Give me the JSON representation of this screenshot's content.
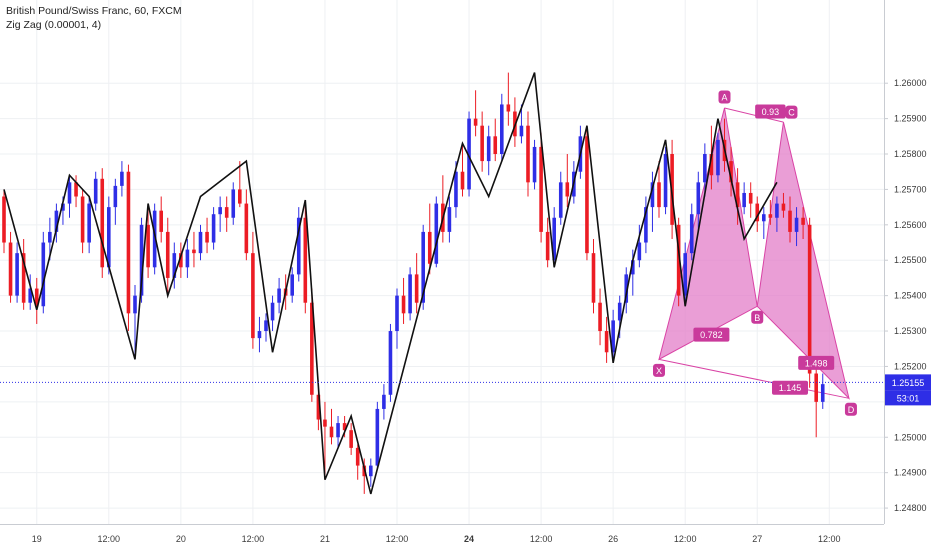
{
  "legend": {
    "title": "British Pound/Swiss Franc, 60, FXCM",
    "indicator": "Zig Zag (0.00001, 4)"
  },
  "chart_data": {
    "type": "candlestick",
    "y_ticks": [
      1.248,
      1.249,
      1.25,
      1.251,
      1.252,
      1.253,
      1.254,
      1.255,
      1.256,
      1.257,
      1.258,
      1.259,
      1.26
    ],
    "y_tick_labels": [
      "1.24800",
      "1.24900",
      "1.25000",
      "1.25100",
      "1.25200",
      "1.25300",
      "1.25400",
      "1.25500",
      "1.25600",
      "1.25700",
      "1.25800",
      "1.25900",
      "1.26000"
    ],
    "ylim": [
      1.24755,
      1.26235
    ],
    "x_ticks": [
      {
        "i": 5,
        "label": "19",
        "bold": false
      },
      {
        "i": 16,
        "label": "12:00",
        "bold": false
      },
      {
        "i": 27,
        "label": "20",
        "bold": false
      },
      {
        "i": 38,
        "label": "12:00",
        "bold": false
      },
      {
        "i": 49,
        "label": "21",
        "bold": false
      },
      {
        "i": 60,
        "label": "12:00",
        "bold": false
      },
      {
        "i": 71,
        "label": "24",
        "bold": true
      },
      {
        "i": 82,
        "label": "12:00",
        "bold": false
      },
      {
        "i": 93,
        "label": "26",
        "bold": false
      },
      {
        "i": 104,
        "label": "12:00",
        "bold": false
      },
      {
        "i": 115,
        "label": "27",
        "bold": false
      },
      {
        "i": 126,
        "label": "12:00",
        "bold": false
      }
    ],
    "current_price": {
      "value": 1.25155,
      "label": "1.25155",
      "countdown": "53:01"
    },
    "colors": {
      "up": "#2e2ee6",
      "down": "#ec1c24",
      "zigzag": "#111111",
      "pattern": "#d943a5",
      "pattern_fill": "#e37ec8"
    },
    "candles": [
      [
        1.2568,
        1.257,
        1.2552,
        1.2555
      ],
      [
        1.2555,
        1.2558,
        1.2538,
        1.254
      ],
      [
        1.254,
        1.2555,
        1.2538,
        1.2552
      ],
      [
        1.2552,
        1.2556,
        1.2536,
        1.2538
      ],
      [
        1.2538,
        1.2546,
        1.2536,
        1.2542
      ],
      [
        1.2542,
        1.2545,
        1.2532,
        1.2537
      ],
      [
        1.2537,
        1.2558,
        1.2535,
        1.2555
      ],
      [
        1.2555,
        1.2562,
        1.255,
        1.2558
      ],
      [
        1.2558,
        1.2566,
        1.2555,
        1.2564
      ],
      [
        1.2564,
        1.2568,
        1.256,
        1.2566
      ],
      [
        1.2566,
        1.2574,
        1.2562,
        1.2572
      ],
      [
        1.2572,
        1.2574,
        1.2565,
        1.2568
      ],
      [
        1.2568,
        1.257,
        1.2552,
        1.2555
      ],
      [
        1.2555,
        1.2568,
        1.2552,
        1.2566
      ],
      [
        1.2566,
        1.2575,
        1.2564,
        1.2573
      ],
      [
        1.2573,
        1.2576,
        1.2545,
        1.2548
      ],
      [
        1.2548,
        1.2568,
        1.2546,
        1.2565
      ],
      [
        1.2565,
        1.2573,
        1.256,
        1.2571
      ],
      [
        1.2571,
        1.2578,
        1.2568,
        1.2575
      ],
      [
        1.2575,
        1.2577,
        1.253,
        1.2535
      ],
      [
        1.2535,
        1.2543,
        1.2522,
        1.254
      ],
      [
        1.254,
        1.2562,
        1.2538,
        1.256
      ],
      [
        1.256,
        1.2566,
        1.2545,
        1.2548
      ],
      [
        1.2548,
        1.2566,
        1.2546,
        1.2564
      ],
      [
        1.2564,
        1.2568,
        1.2555,
        1.2558
      ],
      [
        1.2558,
        1.2562,
        1.254,
        1.2545
      ],
      [
        1.2545,
        1.2555,
        1.2542,
        1.2552
      ],
      [
        1.2552,
        1.2555,
        1.2545,
        1.2548
      ],
      [
        1.2548,
        1.2556,
        1.2545,
        1.2553
      ],
      [
        1.2553,
        1.2558,
        1.2548,
        1.2552
      ],
      [
        1.2552,
        1.256,
        1.255,
        1.2558
      ],
      [
        1.2558,
        1.2562,
        1.2552,
        1.2555
      ],
      [
        1.2555,
        1.2565,
        1.2553,
        1.2563
      ],
      [
        1.2563,
        1.2568,
        1.2558,
        1.2565
      ],
      [
        1.2565,
        1.2568,
        1.2558,
        1.2562
      ],
      [
        1.2562,
        1.2572,
        1.256,
        1.257
      ],
      [
        1.257,
        1.2578,
        1.2565,
        1.2566
      ],
      [
        1.2566,
        1.257,
        1.255,
        1.2552
      ],
      [
        1.2552,
        1.2558,
        1.2525,
        1.2528
      ],
      [
        1.2528,
        1.2534,
        1.2524,
        1.253
      ],
      [
        1.253,
        1.2535,
        1.2527,
        1.2533
      ],
      [
        1.2533,
        1.254,
        1.253,
        1.2538
      ],
      [
        1.2538,
        1.2545,
        1.2535,
        1.2542
      ],
      [
        1.2542,
        1.2546,
        1.2536,
        1.254
      ],
      [
        1.254,
        1.2548,
        1.2538,
        1.2546
      ],
      [
        1.2546,
        1.2565,
        1.2544,
        1.2562
      ],
      [
        1.2562,
        1.2567,
        1.2535,
        1.2538
      ],
      [
        1.2538,
        1.2542,
        1.251,
        1.2512
      ],
      [
        1.2512,
        1.2516,
        1.2502,
        1.2505
      ],
      [
        1.2505,
        1.251,
        1.2488,
        1.2503
      ],
      [
        1.2503,
        1.2508,
        1.2498,
        1.25
      ],
      [
        1.25,
        1.2506,
        1.2497,
        1.2504
      ],
      [
        1.2504,
        1.2506,
        1.25,
        1.2502
      ],
      [
        1.2502,
        1.2504,
        1.2495,
        1.2497
      ],
      [
        1.2497,
        1.2498,
        1.2488,
        1.2492
      ],
      [
        1.2492,
        1.2494,
        1.2484,
        1.2489
      ],
      [
        1.2489,
        1.2494,
        1.2486,
        1.2492
      ],
      [
        1.2492,
        1.251,
        1.2491,
        1.2508
      ],
      [
        1.2508,
        1.2515,
        1.2505,
        1.2512
      ],
      [
        1.2512,
        1.2532,
        1.251,
        1.253
      ],
      [
        1.253,
        1.2542,
        1.2525,
        1.254
      ],
      [
        1.254,
        1.2545,
        1.2532,
        1.2535
      ],
      [
        1.2535,
        1.2548,
        1.2533,
        1.2546
      ],
      [
        1.2546,
        1.2552,
        1.2535,
        1.2538
      ],
      [
        1.2538,
        1.256,
        1.2536,
        1.2558
      ],
      [
        1.2558,
        1.2566,
        1.2546,
        1.2549
      ],
      [
        1.2549,
        1.2568,
        1.2548,
        1.2566
      ],
      [
        1.2566,
        1.2574,
        1.2555,
        1.2558
      ],
      [
        1.2558,
        1.2568,
        1.2555,
        1.2565
      ],
      [
        1.2565,
        1.2578,
        1.2562,
        1.2575
      ],
      [
        1.2575,
        1.2583,
        1.2568,
        1.257
      ],
      [
        1.257,
        1.2592,
        1.2568,
        1.259
      ],
      [
        1.259,
        1.2598,
        1.2585,
        1.2588
      ],
      [
        1.2588,
        1.2592,
        1.2575,
        1.2578
      ],
      [
        1.2578,
        1.2588,
        1.2574,
        1.2585
      ],
      [
        1.2585,
        1.259,
        1.2578,
        1.258
      ],
      [
        1.258,
        1.2597,
        1.2578,
        1.2594
      ],
      [
        1.2594,
        1.2603,
        1.2588,
        1.2592
      ],
      [
        1.2592,
        1.2596,
        1.2582,
        1.2585
      ],
      [
        1.2585,
        1.2594,
        1.2583,
        1.2588
      ],
      [
        1.2588,
        1.2592,
        1.2568,
        1.2572
      ],
      [
        1.2572,
        1.2584,
        1.257,
        1.2582
      ],
      [
        1.2582,
        1.2586,
        1.2555,
        1.2558
      ],
      [
        1.2558,
        1.2562,
        1.2548,
        1.255
      ],
      [
        1.255,
        1.2565,
        1.2548,
        1.2562
      ],
      [
        1.2562,
        1.2575,
        1.256,
        1.2572
      ],
      [
        1.2572,
        1.258,
        1.2565,
        1.2568
      ],
      [
        1.2568,
        1.2578,
        1.2566,
        1.2575
      ],
      [
        1.2575,
        1.2588,
        1.2573,
        1.2585
      ],
      [
        1.2585,
        1.2588,
        1.255,
        1.2552
      ],
      [
        1.2552,
        1.2556,
        1.2535,
        1.2538
      ],
      [
        1.2538,
        1.2542,
        1.2526,
        1.253
      ],
      [
        1.253,
        1.2534,
        1.2521,
        1.2524
      ],
      [
        1.2524,
        1.2536,
        1.2521,
        1.2533
      ],
      [
        1.2533,
        1.254,
        1.2528,
        1.2538
      ],
      [
        1.2538,
        1.2548,
        1.2535,
        1.2546
      ],
      [
        1.2546,
        1.2553,
        1.254,
        1.255
      ],
      [
        1.255,
        1.256,
        1.2548,
        1.2555
      ],
      [
        1.2555,
        1.2568,
        1.2552,
        1.2565
      ],
      [
        1.2565,
        1.2575,
        1.2558,
        1.2572
      ],
      [
        1.2572,
        1.2578,
        1.2562,
        1.2565
      ],
      [
        1.2565,
        1.2582,
        1.2563,
        1.258
      ],
      [
        1.258,
        1.2584,
        1.2556,
        1.256
      ],
      [
        1.256,
        1.2562,
        1.2537,
        1.254
      ],
      [
        1.254,
        1.2555,
        1.2538,
        1.2552
      ],
      [
        1.2552,
        1.2566,
        1.255,
        1.2563
      ],
      [
        1.2563,
        1.2575,
        1.2558,
        1.2572
      ],
      [
        1.2572,
        1.2583,
        1.2568,
        1.258
      ],
      [
        1.258,
        1.2588,
        1.257,
        1.2574
      ],
      [
        1.2574,
        1.2586,
        1.2572,
        1.2584
      ],
      [
        1.2584,
        1.259,
        1.2575,
        1.2578
      ],
      [
        1.2578,
        1.2582,
        1.2568,
        1.2572
      ],
      [
        1.2572,
        1.2576,
        1.256,
        1.2565
      ],
      [
        1.2565,
        1.2572,
        1.2563,
        1.2569
      ],
      [
        1.2569,
        1.2572,
        1.2562,
        1.2566
      ],
      [
        1.2566,
        1.2568,
        1.2558,
        1.2561
      ],
      [
        1.2561,
        1.2565,
        1.2556,
        1.2563
      ],
      [
        1.2563,
        1.2567,
        1.256,
        1.2562
      ],
      [
        1.2562,
        1.2568,
        1.2558,
        1.2566
      ],
      [
        1.2566,
        1.2569,
        1.2562,
        1.2564
      ],
      [
        1.2564,
        1.2568,
        1.2555,
        1.2558
      ],
      [
        1.2558,
        1.2565,
        1.2554,
        1.2562
      ],
      [
        1.2562,
        1.2565,
        1.2556,
        1.256
      ],
      [
        1.256,
        1.2562,
        1.2514,
        1.2518
      ],
      [
        1.2518,
        1.2522,
        1.25,
        1.251
      ],
      [
        1.251,
        1.2518,
        1.2508,
        1.2515
      ]
    ],
    "zigzag": [
      [
        0,
        1.257
      ],
      [
        5,
        1.2536
      ],
      [
        10,
        1.2574
      ],
      [
        13,
        1.2568
      ],
      [
        20,
        1.2522
      ],
      [
        22,
        1.2566
      ],
      [
        25,
        1.254
      ],
      [
        30,
        1.2568
      ],
      [
        37,
        1.2578
      ],
      [
        41,
        1.2524
      ],
      [
        46,
        1.2567
      ],
      [
        49,
        1.2488
      ],
      [
        53,
        1.2506
      ],
      [
        56,
        1.2484
      ],
      [
        70,
        1.2583
      ],
      [
        74,
        1.2568
      ],
      [
        81,
        1.2603
      ],
      [
        84,
        1.2548
      ],
      [
        89,
        1.2588
      ],
      [
        93,
        1.2521
      ],
      [
        96,
        1.255
      ],
      [
        101,
        1.2584
      ],
      [
        104,
        1.2537
      ],
      [
        109,
        1.259
      ],
      [
        113,
        1.2556
      ],
      [
        118,
        1.2572
      ]
    ],
    "pattern": {
      "points": [
        {
          "name": "X",
          "i": 100,
          "price": 1.2522
        },
        {
          "name": "A",
          "i": 110,
          "price": 1.2593
        },
        {
          "name": "B",
          "i": 115,
          "price": 1.2537
        },
        {
          "name": "C",
          "i": 119,
          "price": 1.2589
        },
        {
          "name": "D",
          "i": 129,
          "price": 1.2511
        }
      ],
      "ratios": [
        {
          "label": "0.782",
          "i": 108,
          "price": 1.2529
        },
        {
          "label": "0.93",
          "i": 117,
          "price": 1.2592
        },
        {
          "label": "1.498",
          "i": 124,
          "price": 1.2521
        },
        {
          "label": "1.145",
          "i": 120,
          "price": 1.2514
        }
      ]
    }
  }
}
